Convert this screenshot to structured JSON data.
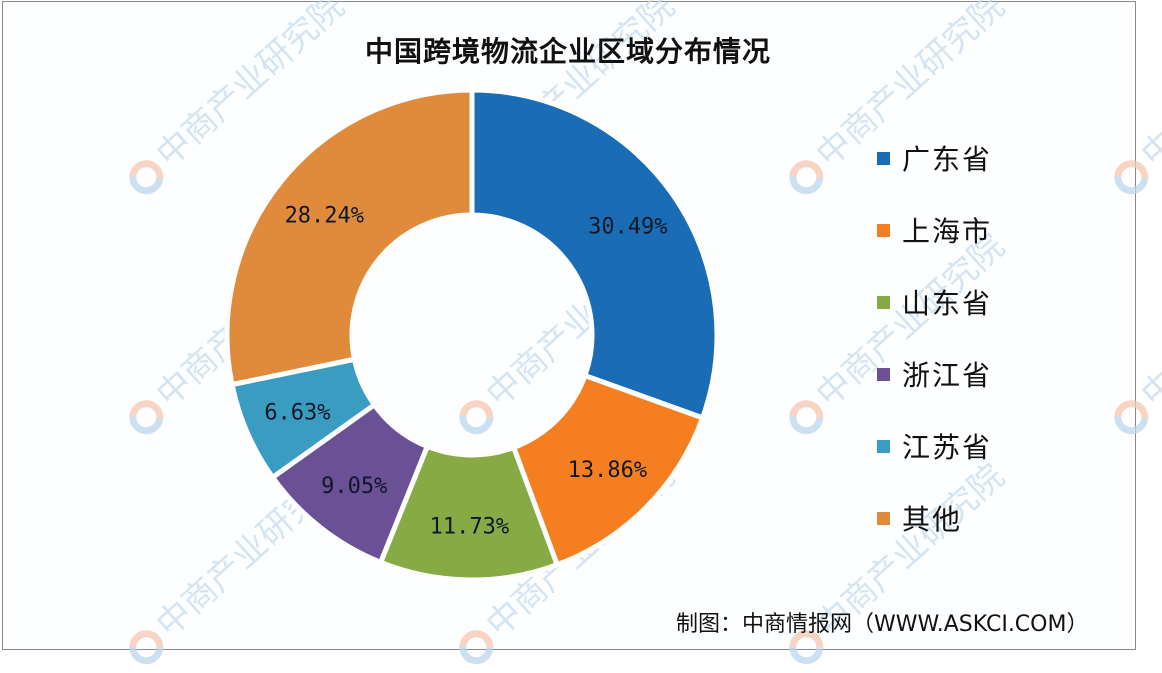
{
  "chart_data": {
    "type": "pie",
    "subtype": "donut",
    "title": "中国跨境物流企业区域分布情况",
    "categories": [
      "广东省",
      "上海市",
      "山东省",
      "浙江省",
      "江苏省",
      "其他"
    ],
    "values": [
      30.49,
      13.86,
      11.73,
      9.05,
      6.63,
      28.24
    ],
    "value_labels": [
      "30.49%",
      "13.86%",
      "11.73%",
      "9.05%",
      "6.63%",
      "28.24%"
    ],
    "unit": "%",
    "colors": [
      "#1a6db5",
      "#f57f20",
      "#86ab45",
      "#6a5196",
      "#3a9cc0",
      "#e08a3c"
    ],
    "start_angle": "12 o'clock",
    "direction": "clockwise",
    "legend_position": "right"
  },
  "header": {
    "title": "中国跨境物流企业区域分布情况"
  },
  "legend": {
    "items": [
      {
        "label": "广东省",
        "color": "#1a6db5"
      },
      {
        "label": "上海市",
        "color": "#f57f20"
      },
      {
        "label": "山东省",
        "color": "#86ab45"
      },
      {
        "label": "浙江省",
        "color": "#6a5196"
      },
      {
        "label": "江苏省",
        "color": "#3a9cc0"
      },
      {
        "label": "其他",
        "color": "#e08a3c"
      }
    ]
  },
  "footer": {
    "source": "制图：中商情报网（WWW.ASKCI.COM）"
  },
  "watermark": {
    "text": "中商产业研究院"
  }
}
